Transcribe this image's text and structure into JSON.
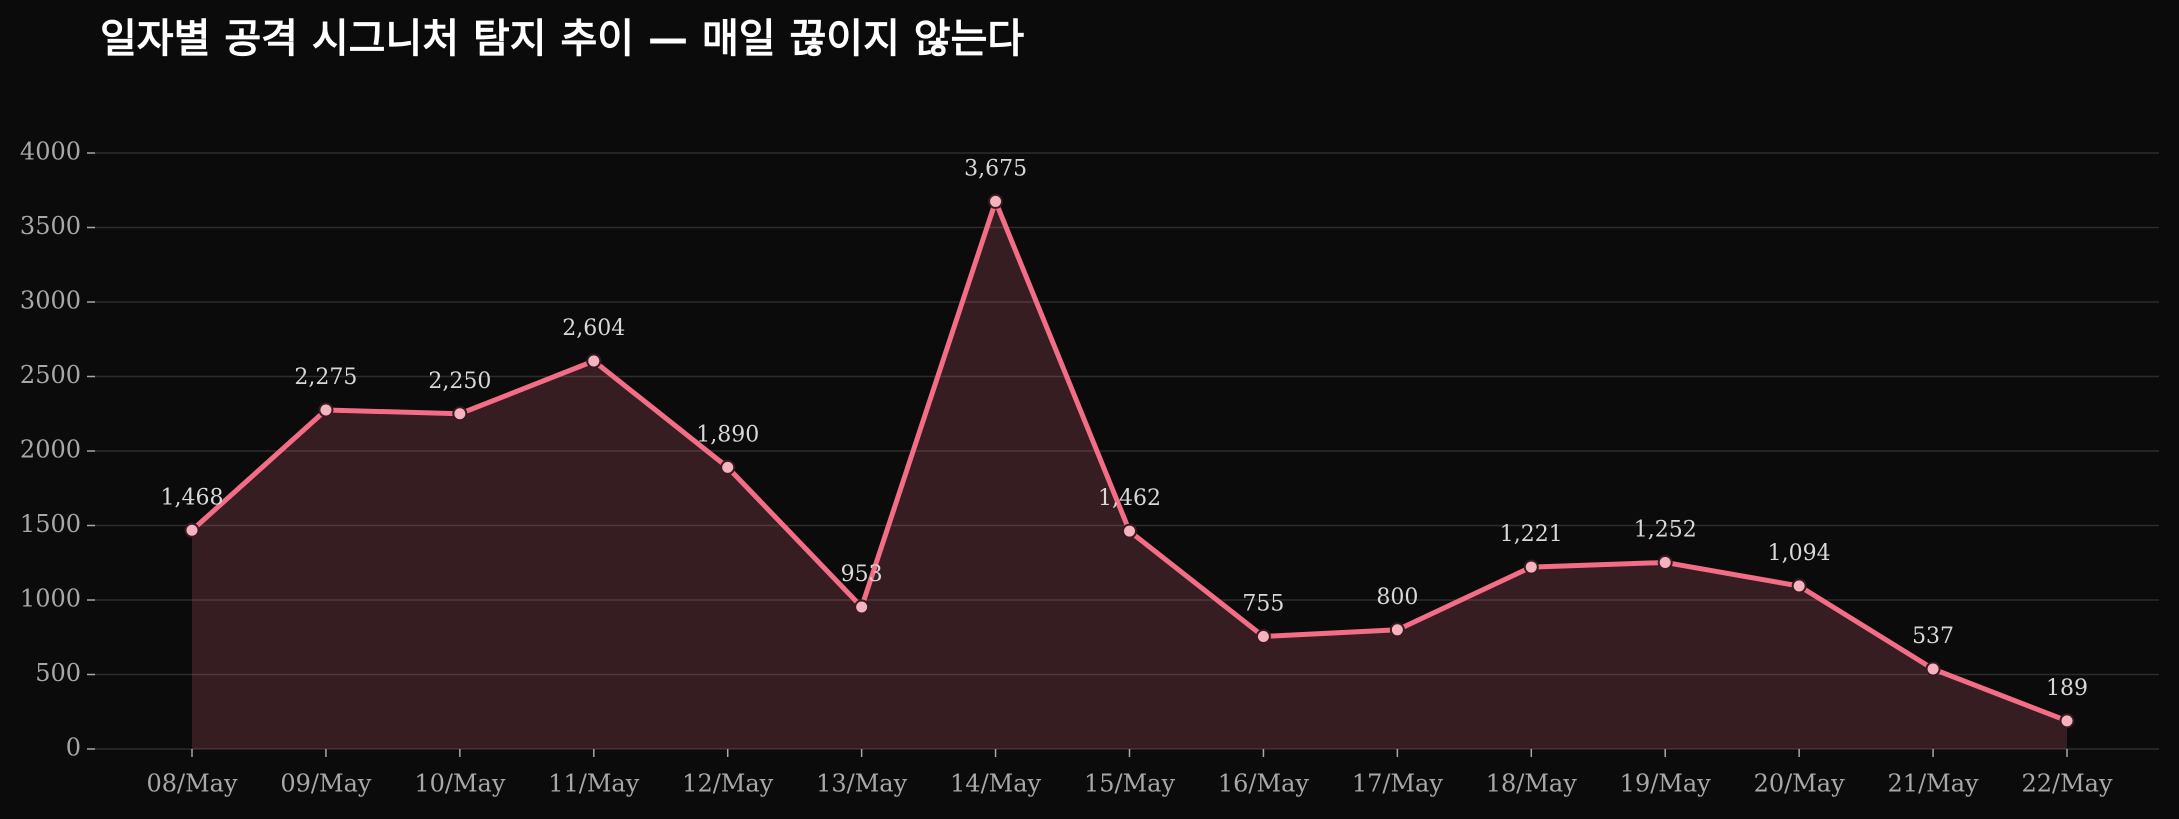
{
  "chart_data": {
    "type": "line",
    "title": "일자별 공격 시그니처 탐지 추이 — 매일 끊이지 않는다",
    "categories": [
      "08/May",
      "09/May",
      "10/May",
      "11/May",
      "12/May",
      "13/May",
      "14/May",
      "15/May",
      "16/May",
      "17/May",
      "18/May",
      "19/May",
      "20/May",
      "21/May",
      "22/May"
    ],
    "values": [
      1468,
      2275,
      2250,
      2604,
      1890,
      953,
      3675,
      1462,
      755,
      800,
      1221,
      1252,
      1094,
      537,
      189
    ],
    "value_labels": [
      "1,468",
      "2,275",
      "2,250",
      "2,604",
      "1,890",
      "953",
      "3,675",
      "1,462",
      "755",
      "800",
      "1,221",
      "1,252",
      "1,094",
      "537",
      "189"
    ],
    "color": "#f26d85",
    "area": true,
    "ylim": [
      0,
      4000
    ],
    "yticks": [
      0,
      500,
      1000,
      1500,
      2000,
      2500,
      3000,
      3500,
      4000
    ],
    "grid": true
  }
}
